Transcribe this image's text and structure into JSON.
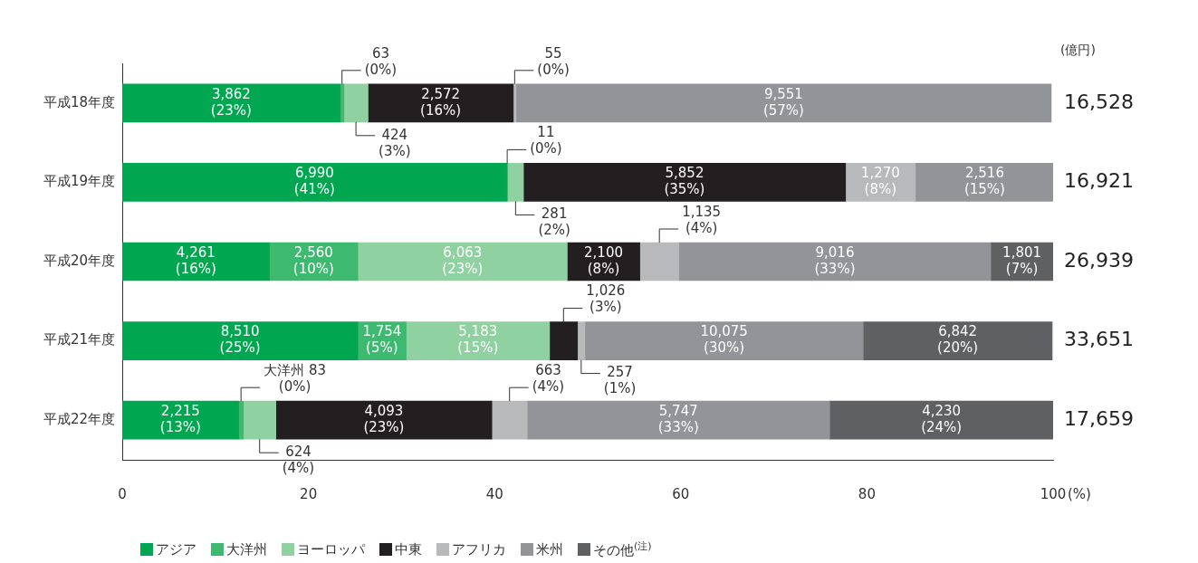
{
  "chart_data": {
    "type": "bar",
    "orientation": "horizontal",
    "stacked": true,
    "categories": [
      "平成18年度",
      "平成19年度",
      "平成20年度",
      "平成21年度",
      "平成22年度"
    ],
    "xlabel": "(%)",
    "xlim": [
      0,
      100
    ],
    "xticks": [
      0,
      20,
      40,
      60,
      80,
      100
    ],
    "grid": false,
    "legend": "bottom",
    "series": [
      {
        "name": "アジア",
        "color": "#00a650",
        "values": [
          23.4,
          41.3,
          15.8,
          25.3,
          12.5
        ],
        "value_labels": [
          "3,862\n(23%)",
          "6,990\n(41%)",
          "4,261\n(16%)",
          "8,510\n(25%)",
          "2,215\n(13%)"
        ]
      },
      {
        "name": "大洋州",
        "color": "#3dba70",
        "values": [
          0.4,
          0.1,
          9.5,
          5.2,
          0.5
        ],
        "value_labels": [
          "63\n(0%)",
          "11\n(0%)",
          "2,560\n(10%)",
          "1,754\n(5%)",
          "大洋州 83\n(0%)"
        ]
      },
      {
        "name": "ヨーロッパ",
        "color": "#8fd1a0",
        "values": [
          2.6,
          1.7,
          22.5,
          15.4,
          3.5
        ],
        "value_labels": [
          "424\n(3%)",
          "281\n(2%)",
          "6,063\n(23%)",
          "5,183\n(15%)",
          "624\n(4%)"
        ]
      },
      {
        "name": "中東",
        "color": "#231f20",
        "values": [
          15.6,
          34.6,
          7.8,
          3.0,
          23.2
        ],
        "value_labels": [
          "2,572\n(16%)",
          "5,852\n(35%)",
          "2,100\n(8%)",
          "1,026\n(3%)",
          "4,093\n(23%)"
        ]
      },
      {
        "name": "アフリカ",
        "color": "#b8b9bb",
        "values": [
          0.3,
          7.5,
          4.2,
          0.8,
          3.8
        ],
        "value_labels": [
          "55\n(0%)",
          "1,270\n(8%)",
          "1,135\n(4%)",
          "257\n(1%)",
          "663\n(4%)"
        ]
      },
      {
        "name": "米州",
        "color": "#939497",
        "values": [
          57.5,
          14.9,
          33.5,
          29.9,
          32.5
        ],
        "value_labels": [
          "9,551\n(57%)",
          "2,516\n(15%)",
          "9,016\n(33%)",
          "10,075\n(30%)",
          "5,747\n(33%)"
        ]
      },
      {
        "name": "その他$^{(注)}$",
        "color": "#5f6062",
        "values": [
          null,
          null,
          6.7,
          20.3,
          24.0
        ],
        "value_labels": [
          null,
          null,
          "1,801\n(7%)",
          "6,842\n(20%)",
          "4,230\n(24%)"
        ]
      }
    ],
    "annotations": [
      "(億円)",
      "16,528",
      "16,921",
      "26,939",
      "33,651",
      "17,659"
    ]
  }
}
